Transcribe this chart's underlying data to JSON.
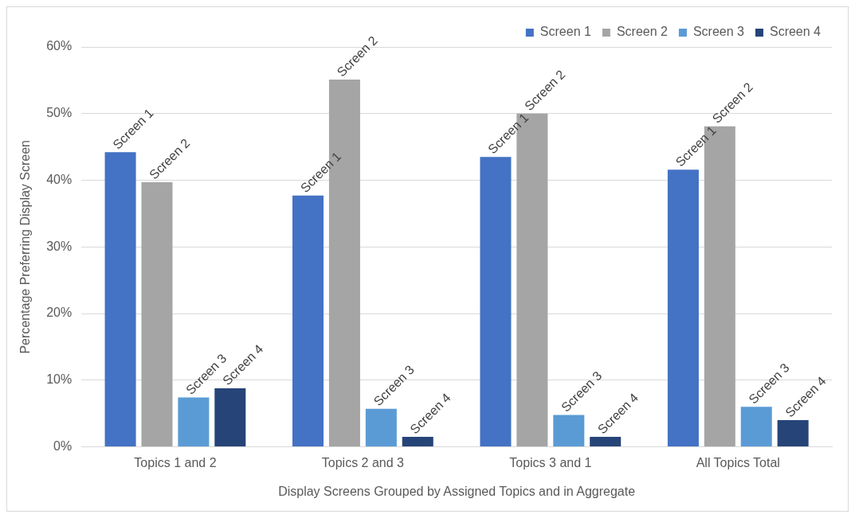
{
  "chart_data": {
    "type": "bar",
    "xlabel": "Display Screens Grouped by Assigned Topics and in Aggregate",
    "ylabel": "Percentage Preferring Display Screen",
    "categories": [
      "Topics 1 and 2",
      "Topics 2 and 3",
      "Topics 3 and 1",
      "All Topics Total"
    ],
    "series": [
      {
        "name": "Screen 1",
        "color": "#4472c4",
        "values": [
          44.2,
          37.7,
          43.5,
          41.6
        ],
        "value_labels": [
          "Screen 1",
          "Screen 1",
          "Screen 1",
          "Screen 1"
        ]
      },
      {
        "name": "Screen 2",
        "color": "#a5a5a5",
        "values": [
          39.7,
          55.1,
          50.0,
          48.1
        ],
        "value_labels": [
          "Screen 2",
          "Screen 2",
          "Screen 2",
          "Screen 2"
        ]
      },
      {
        "name": "Screen 3",
        "color": "#5b9bd5",
        "values": [
          7.4,
          5.7,
          4.8,
          6.0
        ],
        "value_labels": [
          "Screen 3",
          "Screen 3",
          "Screen 3",
          "Screen 3"
        ]
      },
      {
        "name": "Screen 4",
        "color": "#264478",
        "values": [
          8.8,
          1.5,
          1.5,
          4.0
        ],
        "value_labels": [
          "Screen 4",
          "Screen 4",
          "Screen 4",
          "Screen 4"
        ]
      }
    ],
    "ylim": [
      0,
      60
    ],
    "yticks": [
      {
        "value": 0,
        "label": "0%"
      },
      {
        "value": 10,
        "label": "10%"
      },
      {
        "value": 20,
        "label": "20%"
      },
      {
        "value": 30,
        "label": "30%"
      },
      {
        "value": 40,
        "label": "40%"
      },
      {
        "value": 50,
        "label": "50%"
      },
      {
        "value": 60,
        "label": "60%"
      }
    ],
    "grid": "y",
    "legend": "top right"
  }
}
